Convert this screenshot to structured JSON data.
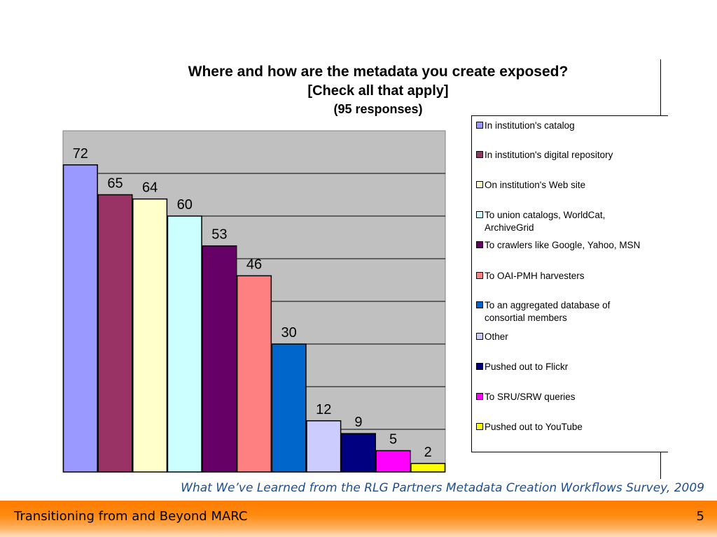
{
  "chart_data": {
    "type": "bar",
    "title": "Where and how are the metadata you create exposed?",
    "subtitle": "[Check all that apply]",
    "note": "(95 responses)",
    "categories": [
      "In institution's catalog",
      "In institution's digital repository",
      "On institution's Web site",
      "To union catalogs, WorldCat, ArchiveGrid",
      "To crawlers like Google, Yahoo, MSN",
      "To OAI-PMH harvesters",
      "To an aggregated database of consortial members",
      "Other",
      "Pushed out to Flickr",
      "To SRU/SRW queries",
      "Pushed out to YouTube"
    ],
    "values": [
      72,
      65,
      64,
      60,
      53,
      46,
      30,
      12,
      9,
      5,
      2
    ],
    "colors": [
      "#9999ff",
      "#993366",
      "#ffffcc",
      "#ccffff",
      "#660066",
      "#ff8080",
      "#0066cc",
      "#ccccff",
      "#000080",
      "#ff00ff",
      "#ffff00"
    ],
    "plot_background": "#c0c0c0",
    "ylim": [
      0,
      80
    ],
    "grid": true,
    "legend_position": "right"
  },
  "legend": [
    {
      "line1": "In institution's catalog",
      "line2": ""
    },
    {
      "line1": "In institution's digital repository",
      "line2": ""
    },
    {
      "line1": "On institution's Web site",
      "line2": ""
    },
    {
      "line1": "To union catalogs, WorldCat,",
      "line2": "ArchiveGrid"
    },
    {
      "line1": "To crawlers like Google, Yahoo, MSN",
      "line2": ""
    },
    {
      "line1": "To OAI-PMH harvesters",
      "line2": ""
    },
    {
      "line1": "To an aggregated database of",
      "line2": "consortial members"
    },
    {
      "line1": "Other",
      "line2": ""
    },
    {
      "line1": "Pushed out to Flickr",
      "line2": ""
    },
    {
      "line1": "To SRU/SRW queries",
      "line2": ""
    },
    {
      "line1": "Pushed out to YouTube",
      "line2": ""
    }
  ],
  "caption": "What We’ve Learned from the RLG Partners Metadata Creation Workflows Survey, 2009",
  "footer": {
    "title": "Transitioning from and Beyond MARC",
    "page": "5"
  }
}
